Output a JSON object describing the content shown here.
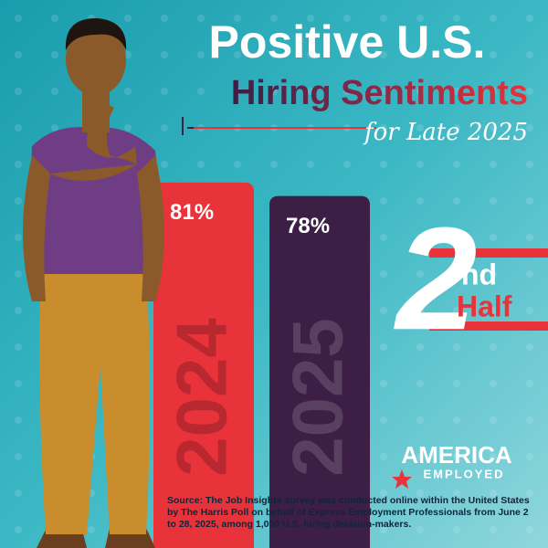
{
  "chart_data": {
    "type": "bar",
    "title": "Positive U.S.",
    "subtitle": "Hiring Sentiments",
    "annotation": "for Late 2025",
    "categories": [
      "2024",
      "2025"
    ],
    "values": [
      81,
      78
    ],
    "value_labels": [
      "81%",
      "78%"
    ],
    "colors": [
      "#e8333a",
      "#3d1f45"
    ]
  },
  "badge": {
    "number": "2",
    "suffix": "nd",
    "word": "Half"
  },
  "logo": {
    "top": "AMERICA",
    "bottom": "EMPLOYED"
  },
  "source": "Source: The Job Insights survey was conducted online within the United States by The Harris Poll on behalf of Express Employment Professionals from June 2 to 28, 2025, among 1,000 U.S. hiring decision-makers."
}
